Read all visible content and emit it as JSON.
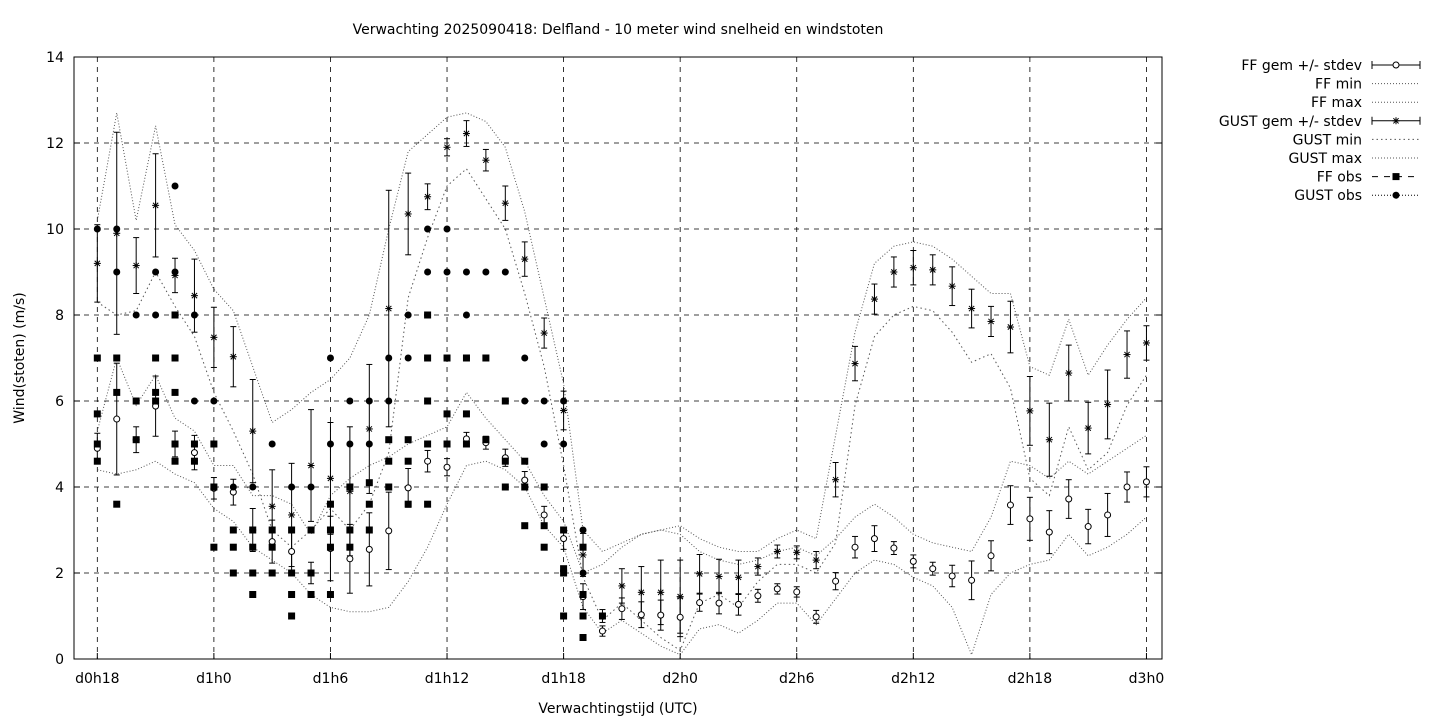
{
  "chart_data": {
    "type": "scatter",
    "title": "Verwachting 2025090418: Delfland - 10 meter wind snelheid en windstoten",
    "xlabel": "Verwachtingstijd (UTC)",
    "ylabel": "Wind(stoten) (m/s)",
    "xlim": [
      -1.2,
      54.8
    ],
    "ylim": [
      0,
      14
    ],
    "grid": true,
    "legend_position": "outside-top-right",
    "x_unit_note": "hours after d0h18",
    "x_ticks": [
      {
        "x": 0,
        "label": "d0h18"
      },
      {
        "x": 6,
        "label": "d1h0"
      },
      {
        "x": 12,
        "label": "d1h6"
      },
      {
        "x": 18,
        "label": "d1h12"
      },
      {
        "x": 24,
        "label": "d1h18"
      },
      {
        "x": 30,
        "label": "d2h0"
      },
      {
        "x": 36,
        "label": "d2h6"
      },
      {
        "x": 42,
        "label": "d2h12"
      },
      {
        "x": 48,
        "label": "d2h18"
      },
      {
        "x": 54,
        "label": "d3h0"
      }
    ],
    "y_ticks": [
      "0",
      "2",
      "4",
      "6",
      "8",
      "10",
      "12",
      "14"
    ],
    "legend": [
      "FF gem +/- stdev",
      "FF min",
      "FF max",
      "GUST gem +/- stdev",
      "GUST min",
      "GUST max",
      "FF obs",
      "GUST obs"
    ],
    "ff_gem": {
      "x": [
        0,
        1,
        2,
        3,
        4,
        5,
        6,
        7,
        8,
        9,
        10,
        11,
        12,
        13,
        14,
        15,
        16,
        17,
        18,
        19,
        20,
        21,
        22,
        23,
        24,
        25,
        26,
        27,
        28,
        29,
        30,
        31,
        32,
        33,
        34,
        35,
        36,
        37,
        38,
        39,
        40,
        41,
        42,
        43,
        44,
        45,
        46,
        47,
        48,
        49,
        50,
        51,
        52,
        53,
        54
      ],
      "mean": [
        4.9,
        5.58,
        5.1,
        5.88,
        5.0,
        4.8,
        3.97,
        3.88,
        3.0,
        2.73,
        2.5,
        2.0,
        2.57,
        2.33,
        2.55,
        2.98,
        3.98,
        4.6,
        4.46,
        5.12,
        5.03,
        4.68,
        4.16,
        3.35,
        2.8,
        1.45,
        0.65,
        1.17,
        1.03,
        1.02,
        0.97,
        1.31,
        1.3,
        1.27,
        1.47,
        1.63,
        1.56,
        0.98,
        1.81,
        2.6,
        2.8,
        2.58,
        2.27,
        2.1,
        1.93,
        1.83,
        2.4,
        3.58,
        3.26,
        2.95,
        3.72,
        3.08,
        3.35,
        4.0,
        4.12
      ],
      "stdev": [
        0.35,
        1.3,
        0.3,
        0.7,
        0.3,
        0.4,
        0.25,
        0.3,
        0.5,
        0.5,
        0.5,
        0.25,
        0.75,
        0.8,
        0.85,
        0.9,
        0.45,
        0.25,
        0.2,
        0.15,
        0.15,
        0.2,
        0.2,
        0.2,
        0.25,
        0.3,
        0.12,
        0.25,
        0.3,
        0.35,
        0.45,
        0.2,
        0.25,
        0.25,
        0.15,
        0.12,
        0.12,
        0.15,
        0.2,
        0.25,
        0.3,
        0.15,
        0.15,
        0.15,
        0.25,
        0.45,
        0.35,
        0.45,
        0.5,
        0.5,
        0.45,
        0.4,
        0.5,
        0.35,
        0.35
      ],
      "min": [
        4.4,
        4.3,
        4.4,
        4.6,
        4.3,
        4.1,
        3.5,
        3.2,
        2.6,
        2.3,
        2.0,
        1.5,
        1.2,
        1.1,
        1.1,
        1.2,
        1.8,
        2.6,
        3.6,
        4.5,
        4.6,
        4.4,
        4.0,
        3.1,
        2.6,
        1.2,
        0.6,
        0.9,
        0.6,
        0.3,
        0.1,
        0.7,
        0.8,
        0.6,
        0.9,
        1.3,
        1.3,
        0.8,
        1.4,
        2.0,
        2.3,
        2.2,
        1.9,
        1.7,
        1.2,
        0.1,
        1.5,
        2.0,
        2.2,
        2.3,
        2.9,
        2.4,
        2.6,
        2.9,
        3.3
      ],
      "max": [
        5.3,
        7.0,
        5.9,
        6.6,
        5.6,
        5.3,
        4.5,
        4.5,
        3.8,
        3.8,
        3.6,
        2.9,
        3.8,
        4.2,
        4.5,
        4.7,
        5.0,
        5.2,
        5.4,
        6.2,
        5.6,
        5.1,
        4.6,
        3.8,
        3.2,
        2.0,
        2.2,
        2.6,
        2.9,
        3.0,
        2.9,
        2.5,
        2.3,
        2.2,
        2.3,
        2.5,
        2.6,
        2.4,
        2.8,
        3.3,
        3.6,
        3.3,
        2.9,
        2.7,
        2.6,
        2.5,
        3.3,
        4.6,
        4.5,
        4.2,
        4.6,
        4.3,
        4.6,
        4.9,
        5.2
      ]
    },
    "gust_gem": {
      "x": [
        0,
        1,
        2,
        3,
        4,
        5,
        6,
        7,
        8,
        9,
        10,
        11,
        12,
        13,
        14,
        15,
        16,
        17,
        18,
        19,
        20,
        21,
        22,
        23,
        24,
        25,
        26,
        27,
        28,
        29,
        30,
        31,
        32,
        33,
        34,
        35,
        36,
        37,
        38,
        39,
        40,
        41,
        42,
        43,
        44,
        45,
        46,
        47,
        48,
        49,
        50,
        51,
        52,
        53,
        54
      ],
      "mean": [
        9.2,
        9.9,
        9.15,
        10.55,
        8.92,
        8.45,
        7.48,
        7.03,
        5.3,
        3.55,
        3.35,
        4.5,
        4.2,
        3.9,
        5.35,
        8.15,
        10.35,
        10.75,
        11.9,
        12.22,
        11.6,
        10.6,
        9.3,
        7.58,
        5.78,
        2.42,
        1.0,
        1.7,
        1.55,
        1.55,
        1.45,
        1.98,
        1.92,
        1.9,
        2.15,
        2.5,
        2.48,
        2.3,
        4.17,
        6.87,
        8.37,
        9.0,
        9.1,
        9.05,
        8.67,
        8.15,
        7.85,
        7.72,
        5.77,
        5.1,
        6.65,
        5.37,
        5.92,
        7.08,
        7.35
      ],
      "stdev": [
        0.9,
        2.35,
        0.65,
        1.2,
        0.4,
        0.85,
        0.7,
        0.7,
        1.2,
        0.85,
        1.2,
        1.3,
        1.3,
        1.5,
        1.5,
        2.75,
        0.95,
        0.3,
        0.2,
        0.3,
        0.25,
        0.4,
        0.4,
        0.35,
        0.45,
        0.5,
        0.15,
        0.4,
        0.6,
        0.75,
        0.85,
        0.45,
        0.4,
        0.4,
        0.2,
        0.15,
        0.15,
        0.2,
        0.4,
        0.4,
        0.35,
        0.35,
        0.4,
        0.35,
        0.45,
        0.45,
        0.35,
        0.6,
        0.8,
        0.85,
        0.65,
        0.6,
        0.8,
        0.55,
        0.4
      ],
      "min": [
        8.3,
        8.0,
        8.1,
        9.0,
        8.2,
        7.5,
        6.2,
        5.3,
        4.3,
        3.0,
        2.6,
        3.0,
        3.5,
        3.0,
        3.6,
        4.8,
        8.4,
        9.8,
        11.0,
        11.4,
        10.7,
        10.0,
        8.5,
        6.8,
        4.5,
        1.9,
        0.9,
        1.3,
        0.9,
        0.5,
        0.2,
        1.3,
        1.5,
        1.2,
        1.8,
        2.2,
        2.2,
        2.0,
        2.7,
        5.9,
        7.5,
        8.0,
        8.2,
        8.1,
        7.6,
        6.9,
        7.1,
        6.3,
        4.2,
        3.8,
        5.4,
        4.4,
        4.8,
        5.9,
        6.6
      ],
      "max": [
        10.2,
        12.7,
        10.2,
        12.4,
        10.1,
        9.5,
        8.6,
        8.1,
        6.8,
        5.5,
        5.8,
        6.2,
        6.5,
        7.0,
        8.0,
        10.0,
        11.8,
        12.2,
        12.6,
        12.7,
        12.5,
        11.9,
        10.4,
        8.4,
        6.4,
        3.0,
        2.5,
        2.7,
        2.9,
        3.0,
        3.1,
        2.8,
        2.6,
        2.5,
        2.5,
        2.8,
        3.0,
        2.8,
        5.2,
        7.6,
        9.2,
        9.6,
        9.7,
        9.6,
        9.3,
        8.9,
        8.5,
        8.5,
        6.8,
        6.6,
        7.9,
        6.6,
        7.3,
        7.9,
        8.4
      ]
    },
    "ff_obs": [
      [
        0,
        4.6
      ],
      [
        0,
        5.0
      ],
      [
        0,
        5.7
      ],
      [
        0,
        7.0
      ],
      [
        1,
        3.6
      ],
      [
        1,
        6.2
      ],
      [
        1,
        7.0
      ],
      [
        2,
        5.1
      ],
      [
        2,
        6.0
      ],
      [
        3,
        6.0
      ],
      [
        3,
        6.2
      ],
      [
        3,
        7.0
      ],
      [
        4,
        4.6
      ],
      [
        4,
        5.0
      ],
      [
        4,
        6.2
      ],
      [
        4,
        7.0
      ],
      [
        4,
        8.0
      ],
      [
        5,
        4.6
      ],
      [
        5,
        5.0
      ],
      [
        6,
        2.6
      ],
      [
        6,
        4.0
      ],
      [
        6,
        5.0
      ],
      [
        7,
        2.0
      ],
      [
        7,
        2.6
      ],
      [
        7,
        3.0
      ],
      [
        8,
        1.5
      ],
      [
        8,
        2.0
      ],
      [
        8,
        2.6
      ],
      [
        8,
        3.0
      ],
      [
        9,
        2.0
      ],
      [
        9,
        2.6
      ],
      [
        9,
        3.0
      ],
      [
        10,
        1.0
      ],
      [
        10,
        1.5
      ],
      [
        10,
        2.0
      ],
      [
        10,
        3.0
      ],
      [
        11,
        1.5
      ],
      [
        11,
        2.0
      ],
      [
        11,
        3.0
      ],
      [
        12,
        1.5
      ],
      [
        12,
        2.6
      ],
      [
        12,
        3.0
      ],
      [
        12,
        3.6
      ],
      [
        13,
        2.6
      ],
      [
        13,
        3.0
      ],
      [
        13,
        4.0
      ],
      [
        14,
        3.0
      ],
      [
        14,
        3.6
      ],
      [
        14,
        4.1
      ],
      [
        15,
        4.0
      ],
      [
        15,
        4.6
      ],
      [
        15,
        5.1
      ],
      [
        16,
        3.6
      ],
      [
        16,
        4.6
      ],
      [
        16,
        5.1
      ],
      [
        17,
        3.6
      ],
      [
        17,
        5.0
      ],
      [
        17,
        6.0
      ],
      [
        17,
        7.0
      ],
      [
        17,
        8.0
      ],
      [
        18,
        5.0
      ],
      [
        18,
        5.7
      ],
      [
        18,
        7.0
      ],
      [
        19,
        5.0
      ],
      [
        19,
        5.7
      ],
      [
        19,
        7.0
      ],
      [
        20,
        5.1
      ],
      [
        20,
        7.0
      ],
      [
        21,
        4.0
      ],
      [
        21,
        4.6
      ],
      [
        21,
        6.0
      ],
      [
        22,
        3.1
      ],
      [
        22,
        4.0
      ],
      [
        22,
        4.6
      ],
      [
        23,
        2.6
      ],
      [
        23,
        3.1
      ],
      [
        23,
        4.0
      ],
      [
        24,
        1.0
      ],
      [
        24,
        2.0
      ],
      [
        24,
        2.1
      ],
      [
        24,
        3.0
      ],
      [
        25,
        0.5
      ],
      [
        25,
        1.0
      ],
      [
        25,
        1.5
      ],
      [
        25,
        2.6
      ],
      [
        26,
        1.0
      ]
    ],
    "gust_obs": [
      [
        0,
        10.0
      ],
      [
        1,
        9.0
      ],
      [
        1,
        10.0
      ],
      [
        2,
        8.0
      ],
      [
        3,
        8.0
      ],
      [
        3,
        9.0
      ],
      [
        4,
        7.0
      ],
      [
        4,
        9.0
      ],
      [
        4,
        11.0
      ],
      [
        5,
        6.0
      ],
      [
        5,
        8.0
      ],
      [
        6,
        6.0
      ],
      [
        7,
        4.0
      ],
      [
        8,
        4.0
      ],
      [
        9,
        5.0
      ],
      [
        10,
        4.0
      ],
      [
        11,
        4.0
      ],
      [
        12,
        5.0
      ],
      [
        12,
        7.0
      ],
      [
        13,
        5.0
      ],
      [
        13,
        6.0
      ],
      [
        14,
        5.0
      ],
      [
        14,
        6.0
      ],
      [
        15,
        6.0
      ],
      [
        15,
        7.0
      ],
      [
        16,
        7.0
      ],
      [
        16,
        8.0
      ],
      [
        17,
        7.0
      ],
      [
        17,
        8.0
      ],
      [
        17,
        9.0
      ],
      [
        17,
        10.0
      ],
      [
        18,
        7.0
      ],
      [
        18,
        9.0
      ],
      [
        18,
        10.0
      ],
      [
        19,
        7.0
      ],
      [
        19,
        8.0
      ],
      [
        19,
        9.0
      ],
      [
        20,
        9.0
      ],
      [
        21,
        9.0
      ],
      [
        22,
        6.0
      ],
      [
        22,
        7.0
      ],
      [
        23,
        5.0
      ],
      [
        23,
        6.0
      ],
      [
        24,
        5.0
      ],
      [
        24,
        6.0
      ],
      [
        25,
        3.0
      ],
      [
        25,
        2.0
      ]
    ]
  }
}
